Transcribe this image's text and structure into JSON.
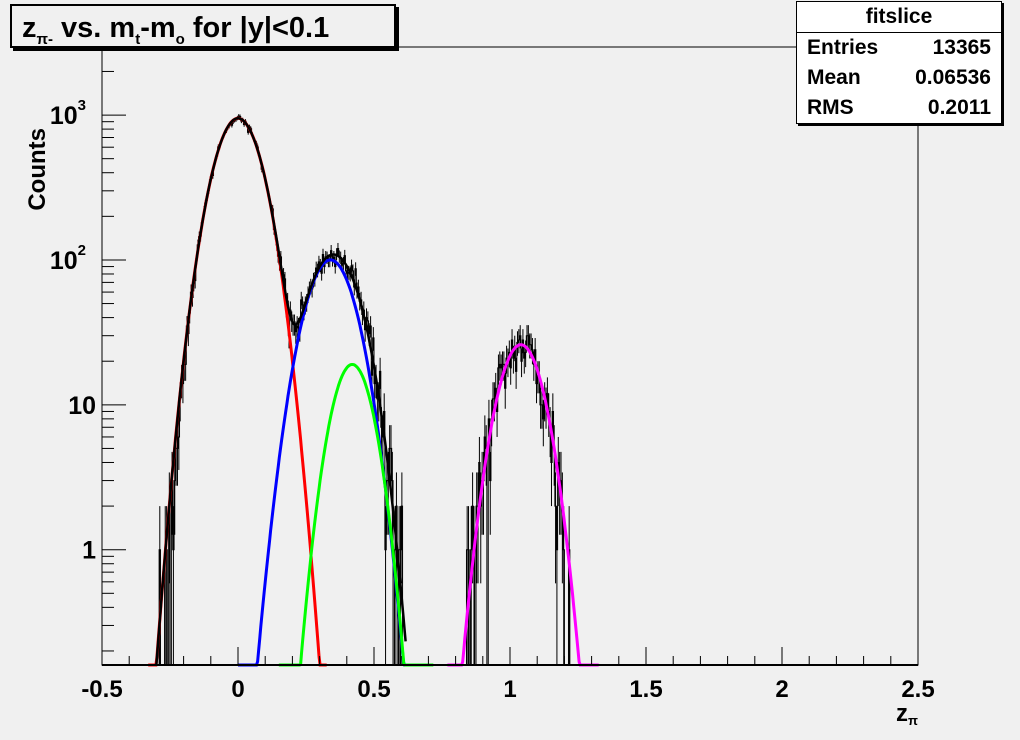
{
  "title": {
    "main": "z",
    "sub": "π-",
    "rest": " vs. m",
    "sub2": "t",
    "rest2": "-m",
    "sub3": "o",
    "rest3": " for |y|<0.1"
  },
  "stats": {
    "name": "fitslice",
    "rows": [
      {
        "label": "Entries",
        "value": "13365"
      },
      {
        "label": "Mean",
        "value": "0.06536"
      },
      {
        "label": "RMS",
        "value": "0.2011"
      }
    ]
  },
  "chart_data": {
    "type": "line",
    "title": "zπ- vs. mt-mo for |y|<0.1",
    "xlabel": "zπ",
    "ylabel": "Counts",
    "xlim": [
      -0.5,
      2.5
    ],
    "ylim": [
      0.16,
      2950
    ],
    "yscale": "log",
    "xticks": [
      "-0.5",
      "0",
      "0.5",
      "1",
      "1.5",
      "2",
      "2.5"
    ],
    "yticks": [
      {
        "value": 1,
        "label": "1"
      },
      {
        "value": 10,
        "label": "10"
      },
      {
        "value": 100,
        "label": "10",
        "exp": "2"
      },
      {
        "value": 1000,
        "label": "10",
        "exp": "3"
      }
    ],
    "histogram": {
      "bin_width": 0.005,
      "color": "#000000"
    },
    "series": [
      {
        "name": "gaussian-1",
        "color": "#ff0000",
        "amplitude": 950,
        "mean": 0.0,
        "sigma": 0.072,
        "range": [
          -0.33,
          0.33
        ]
      },
      {
        "name": "gaussian-2",
        "color": "#0000ff",
        "amplitude": 100,
        "mean": 0.34,
        "sigma": 0.075,
        "range": [
          0.0,
          0.66
        ]
      },
      {
        "name": "gaussian-3",
        "color": "#00ff00",
        "amplitude": 19,
        "mean": 0.42,
        "sigma": 0.0615,
        "range": [
          0.15,
          0.72
        ]
      },
      {
        "name": "gaussian-4",
        "color": "#ff00ff",
        "amplitude": 26,
        "mean": 1.04,
        "sigma": 0.0674,
        "range": [
          0.77,
          1.33
        ]
      },
      {
        "name": "total-fit",
        "color": "#000000",
        "components": [
          0,
          1,
          2
        ],
        "range": [
          -0.3,
          0.62
        ]
      }
    ]
  }
}
